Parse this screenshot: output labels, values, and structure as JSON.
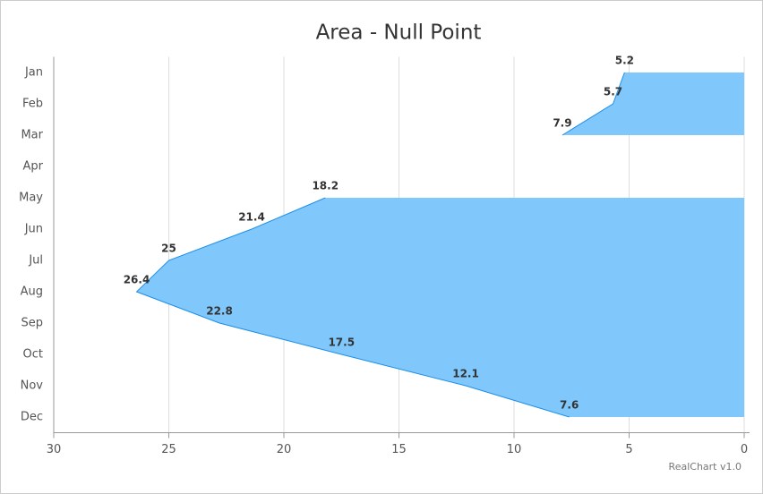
{
  "chart_data": {
    "type": "area",
    "orientation": "horizontal",
    "title": "Area - Null Point",
    "categories": [
      "Jan",
      "Feb",
      "Mar",
      "Apr",
      "May",
      "Jun",
      "Jul",
      "Aug",
      "Sep",
      "Oct",
      "Nov",
      "Dec"
    ],
    "values": [
      5.2,
      5.7,
      7.9,
      null,
      18.2,
      21.4,
      25,
      26.4,
      22.8,
      17.5,
      12.1,
      7.6
    ],
    "color": "#80c8fc",
    "xlim": [
      30,
      0
    ],
    "xticks": [
      30,
      25,
      20,
      15,
      10,
      5,
      0
    ],
    "grid": true,
    "credits": "RealChart v1.0"
  }
}
